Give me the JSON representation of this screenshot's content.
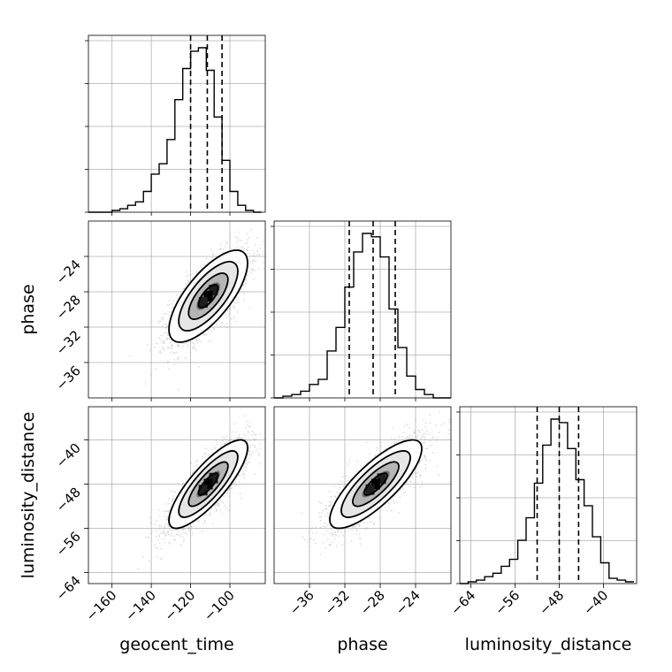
{
  "chart_data": {
    "type": "corner",
    "parameters": [
      {
        "name": "geocent_time",
        "range": [
          -172,
          -82
        ],
        "ticks": [
          -160,
          -140,
          -120,
          -100
        ],
        "hist_ticks_plain": true,
        "quantiles": [
          -120,
          -111.5,
          -104
        ],
        "median": -111,
        "sigma": 10
      },
      {
        "name": "phase",
        "range": [
          -40,
          -20
        ],
        "ticks": [
          -36,
          -32,
          -28,
          -24
        ],
        "quantiles": [
          -31.5,
          -28.8,
          -26.3
        ],
        "median": -28.5,
        "sigma": 2.6
      },
      {
        "name": "luminosity_distance",
        "range": [
          -66,
          -34
        ],
        "ticks": [
          -64,
          -56,
          -48,
          -40
        ],
        "quantiles": [
          -52,
          -48,
          -44.5
        ],
        "median": -48,
        "sigma": 4
      }
    ],
    "histograms": [
      {
        "param": "geocent_time",
        "bin_edges": [
          -172,
          -168,
          -164,
          -160,
          -156,
          -152,
          -148,
          -144,
          -140,
          -136,
          -132,
          -128,
          -124,
          -120,
          -116,
          -112,
          -108,
          -104,
          -100,
          -96,
          -92,
          -88,
          -84
        ],
        "counts": [
          0,
          0,
          0,
          0.01,
          0.02,
          0.04,
          0.06,
          0.12,
          0.22,
          0.28,
          0.42,
          0.65,
          0.83,
          0.93,
          0.95,
          0.82,
          0.55,
          0.3,
          0.12,
          0.04,
          0.01,
          0
        ]
      },
      {
        "param": "phase",
        "bin_edges": [
          -40,
          -39,
          -38,
          -37,
          -36,
          -35,
          -34,
          -33,
          -32,
          -31,
          -30,
          -29,
          -28,
          -27,
          -26,
          -25,
          -24,
          -23,
          -22,
          -21,
          -20
        ],
        "counts": [
          0,
          0.01,
          0.02,
          0.04,
          0.08,
          0.11,
          0.28,
          0.42,
          0.66,
          0.87,
          0.98,
          0.96,
          0.84,
          0.53,
          0.3,
          0.13,
          0.05,
          0.02,
          0,
          0
        ]
      },
      {
        "param": "luminosity_distance",
        "bin_edges": [
          -66,
          -64.5,
          -63,
          -61.5,
          -60,
          -58.5,
          -57,
          -55.5,
          -54,
          -52.5,
          -51,
          -49.5,
          -48,
          -46.5,
          -45,
          -43.5,
          -42,
          -40.5,
          -39,
          -37.5,
          -36,
          -34.5
        ],
        "counts": [
          0,
          0.01,
          0.02,
          0.04,
          0.06,
          0.1,
          0.14,
          0.25,
          0.38,
          0.58,
          0.8,
          0.95,
          0.93,
          0.78,
          0.6,
          0.45,
          0.27,
          0.12,
          0.03,
          0.02,
          0.01
        ]
      }
    ],
    "joint": [
      {
        "x": "geocent_time",
        "y": "phase",
        "correlation": 0.72
      },
      {
        "x": "geocent_time",
        "y": "luminosity_distance",
        "correlation": 0.82
      },
      {
        "x": "phase",
        "y": "luminosity_distance",
        "correlation": 0.8
      }
    ],
    "colors": {
      "scatter": "#8c8c8c",
      "lines": "#000000",
      "grid": "#b0b0b0"
    },
    "grid": true
  }
}
